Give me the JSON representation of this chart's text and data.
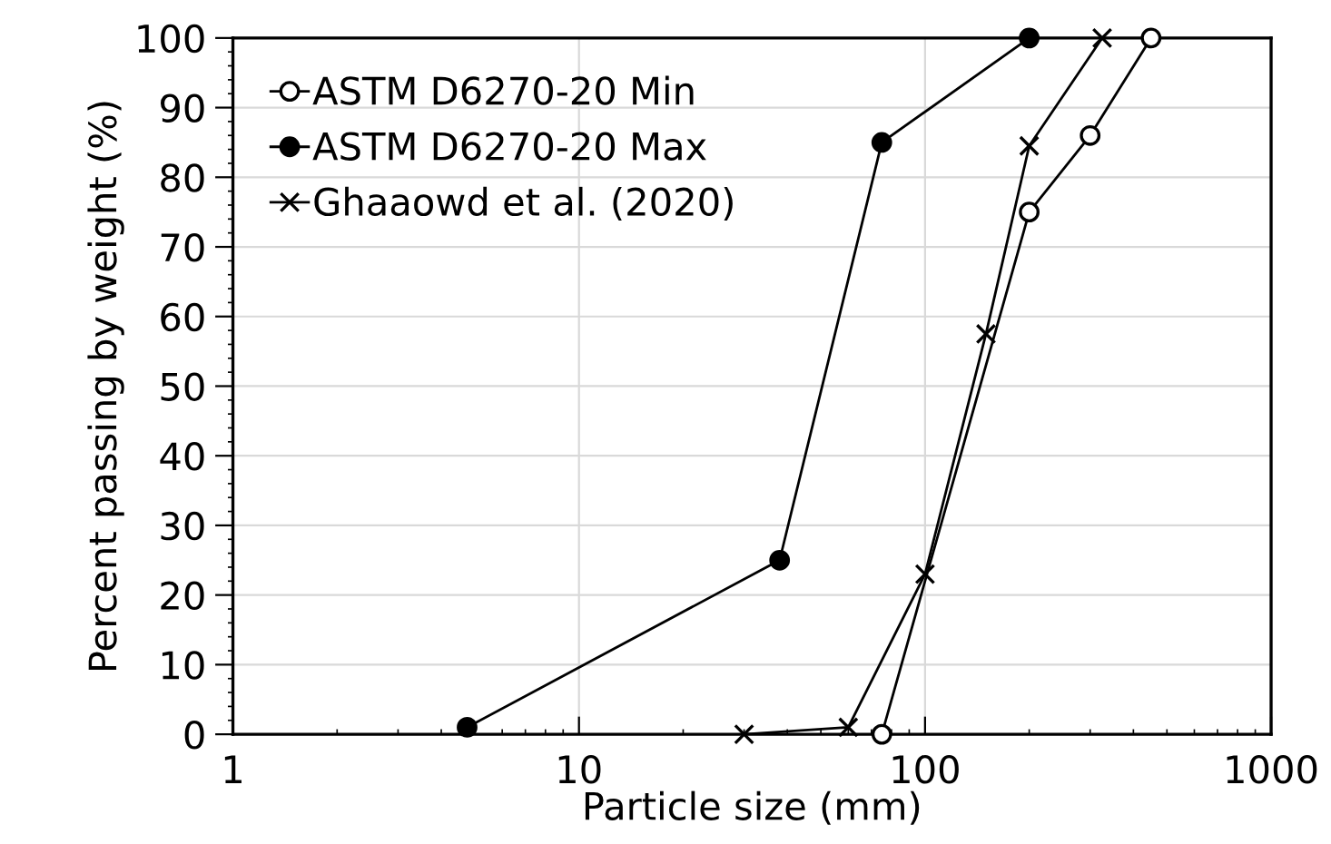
{
  "chart_data": {
    "type": "line",
    "xlabel": "Particle size (mm)",
    "ylabel": "Percent passing by weight (%)",
    "log": "x",
    "xlim": [
      1,
      1000
    ],
    "xticks": [
      1,
      10,
      100,
      1000
    ],
    "ylim": [
      0,
      100
    ],
    "yticks": [
      0,
      10,
      20,
      30,
      40,
      50,
      60,
      70,
      80,
      90,
      100
    ],
    "grid": true,
    "legend": "top left",
    "series": [
      {
        "name": "ASTM D6270-20 Min",
        "color": "#000000",
        "marker": "open circle",
        "x": [
          75,
          200,
          300,
          450
        ],
        "values": [
          0,
          75,
          86,
          100
        ]
      },
      {
        "name": "ASTM D6270-20 Max",
        "color": "#000000",
        "marker": "circle",
        "x": [
          4.75,
          38,
          75,
          200
        ],
        "values": [
          1,
          25,
          85,
          100
        ]
      },
      {
        "name": "Ghaaowd et al. (2020)",
        "color": "#000000",
        "marker": "cross",
        "x": [
          30,
          60,
          100,
          150,
          200,
          325
        ],
        "values": [
          0,
          1,
          23,
          57.5,
          84.5,
          100
        ]
      }
    ]
  }
}
